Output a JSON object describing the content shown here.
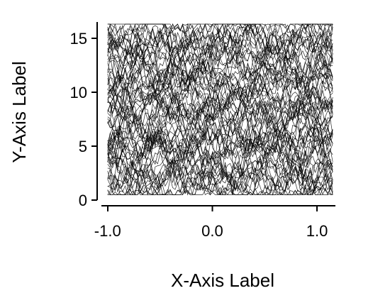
{
  "chart_data": {
    "type": "line",
    "title": "",
    "xlabel": "X-Axis Label",
    "ylabel": "Y-Axis Label",
    "xlim": [
      -1.1,
      1.25
    ],
    "ylim": [
      0,
      16.5
    ],
    "x_ticks": [
      -1.0,
      0.0,
      1.0
    ],
    "x_tick_labels": [
      "-1.0",
      "0.0",
      "1.0"
    ],
    "y_ticks": [
      0,
      5,
      10,
      15
    ],
    "y_tick_labels": [
      "0",
      "5",
      "10",
      "15"
    ],
    "grid": false,
    "legend": "none",
    "line_color": "#000000",
    "series_description_values": {
      "x_range": [
        -1.0,
        1.15
      ],
      "y_range": [
        0.5,
        16.3
      ],
      "curve_count": 80
    }
  }
}
